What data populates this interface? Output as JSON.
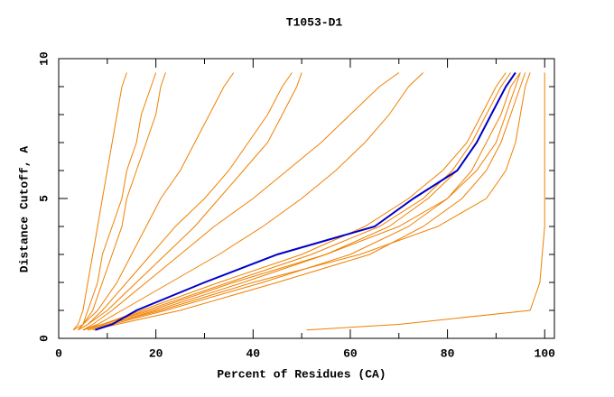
{
  "chart_data": {
    "type": "line",
    "title": "T1053-D1",
    "x_label": "Percent of Residues (CA)",
    "y_label": "Distance Cutoff, A",
    "xlim": [
      0,
      102
    ],
    "ylim": [
      0,
      10
    ],
    "xticks": [
      0,
      20,
      40,
      60,
      80,
      100
    ],
    "yticks": [
      0,
      5,
      10
    ],
    "x_minor_ticks": [
      10,
      30,
      50,
      70,
      90
    ],
    "y_minor_ticks": [
      1,
      2,
      3,
      4,
      6,
      7,
      8,
      9
    ],
    "distances": [
      0.3,
      0.5,
      1,
      2,
      3,
      4,
      5,
      6,
      7,
      8,
      9,
      9.5
    ],
    "series": [
      {
        "color": "#f08000",
        "x": [
          3,
          4,
          5,
          6,
          7,
          8,
          9,
          10,
          11,
          12,
          13,
          14
        ]
      },
      {
        "color": "#f08000",
        "x": [
          4,
          5,
          6,
          8,
          9,
          11,
          13,
          14,
          16,
          17,
          19,
          20
        ]
      },
      {
        "color": "#f08000",
        "x": [
          3,
          5,
          7,
          9,
          11,
          13,
          14,
          16,
          18,
          20,
          21,
          22
        ]
      },
      {
        "color": "#f08000",
        "x": [
          4,
          5,
          8,
          12,
          15,
          18,
          21,
          25,
          28,
          31,
          34,
          36
        ]
      },
      {
        "color": "#f08000",
        "x": [
          4,
          6,
          9,
          14,
          19,
          24,
          30,
          35,
          39,
          43,
          46,
          48
        ]
      },
      {
        "color": "#f08000",
        "x": [
          5,
          7,
          11,
          18,
          25,
          32,
          40,
          47,
          54,
          60,
          66,
          70
        ]
      },
      {
        "color": "#f08000",
        "x": [
          4,
          6,
          10,
          16,
          22,
          28,
          33,
          38,
          43,
          46,
          49,
          50
        ]
      },
      {
        "color": "#f08000",
        "x": [
          5,
          8,
          13,
          23,
          33,
          42,
          50,
          57,
          63,
          68,
          72,
          75
        ]
      },
      {
        "color": "#f08000",
        "x": [
          5,
          9,
          17,
          33,
          50,
          63,
          72,
          79,
          84,
          87,
          90,
          92
        ]
      },
      {
        "color": "#f08000",
        "x": [
          6,
          10,
          20,
          38,
          55,
          68,
          76,
          82,
          86,
          89,
          92,
          94
        ]
      },
      {
        "color": "#f08000",
        "x": [
          6,
          11,
          22,
          42,
          60,
          72,
          80,
          85,
          88,
          91,
          93,
          95
        ]
      },
      {
        "color": "#f08000",
        "x": [
          7,
          12,
          25,
          45,
          64,
          75,
          83,
          88,
          91,
          93,
          95,
          96
        ]
      },
      {
        "color": "#f08000",
        "x": [
          6,
          10,
          21,
          40,
          62,
          78,
          88,
          92,
          94,
          95,
          96,
          97
        ]
      },
      {
        "color": "#f08000",
        "x": [
          5,
          9,
          18,
          35,
          52,
          66,
          75,
          81,
          85,
          88,
          91,
          93
        ]
      },
      {
        "color": "#f08000",
        "x": [
          5,
          9,
          19,
          36,
          55,
          70,
          80,
          86,
          90,
          92,
          94,
          95
        ]
      },
      {
        "color": "#f08000",
        "x": [
          51,
          70,
          97,
          99,
          99.5,
          100,
          100,
          100,
          100,
          100,
          100,
          100
        ]
      },
      {
        "color": "#0000c8",
        "x": [
          7.5,
          11,
          16,
          30,
          45,
          65,
          73,
          82,
          86,
          89,
          92,
          94
        ]
      }
    ]
  }
}
